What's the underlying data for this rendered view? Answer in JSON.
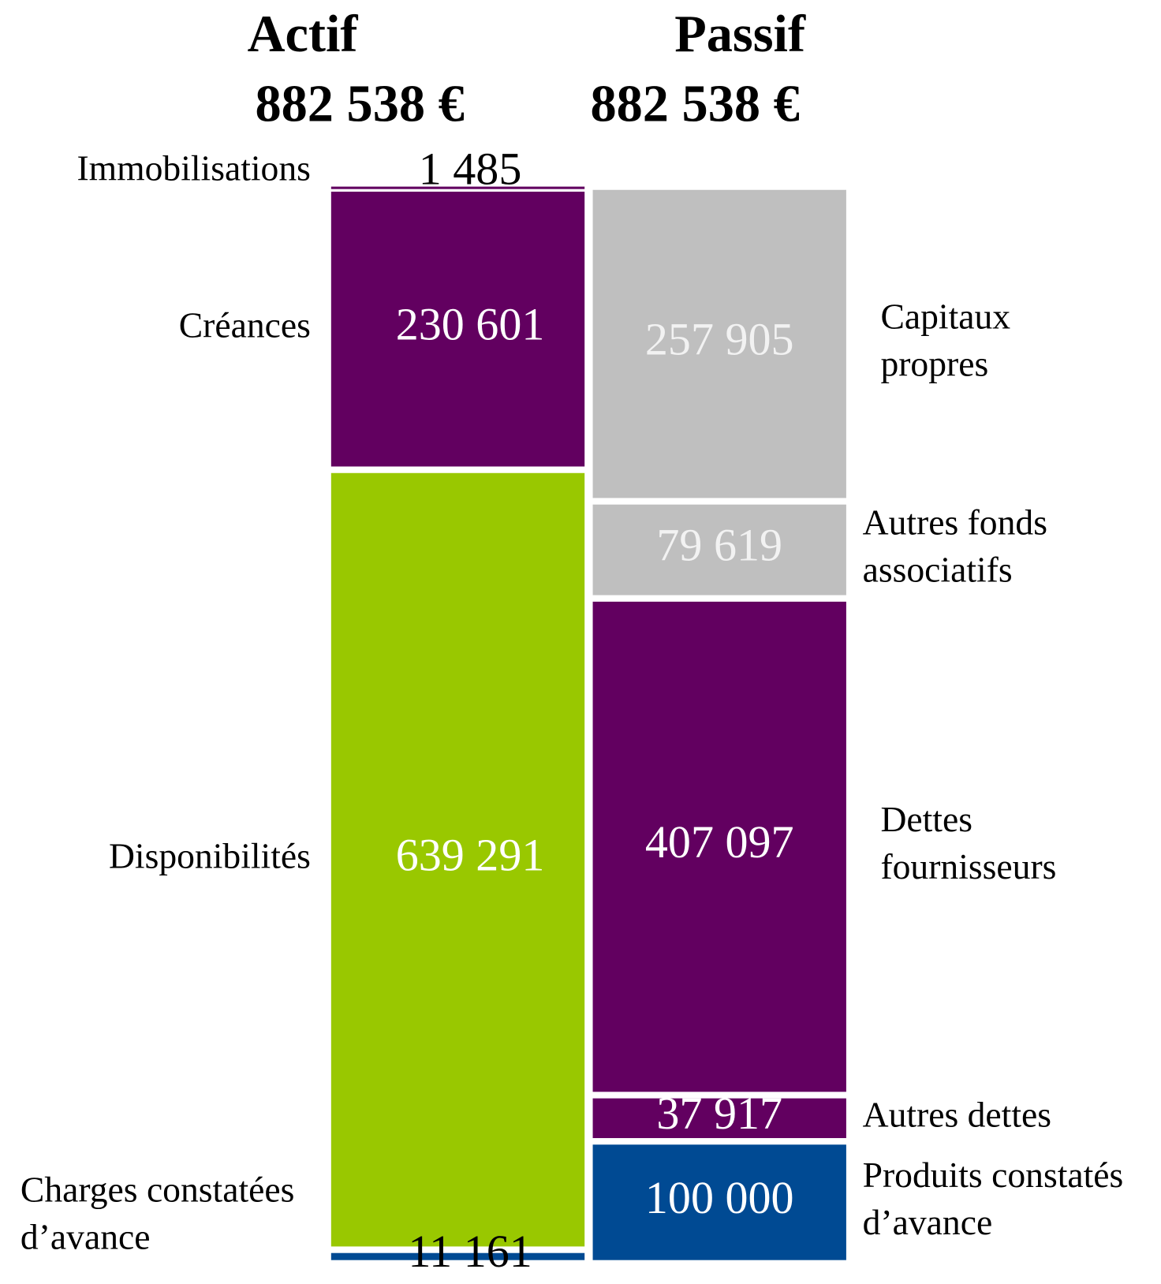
{
  "chart_data": {
    "type": "stacked_column",
    "columns": [
      {
        "name": "Actif",
        "total_label": "882 538 €",
        "label_side": "left",
        "segments": [
          {
            "label_lines": [
              "Immobilisations"
            ],
            "value": 1485,
            "value_label": "1 485",
            "color": "#620060",
            "label_color": "#000000"
          },
          {
            "label_lines": [
              "Créances"
            ],
            "value": 230601,
            "value_label": "230 601",
            "color": "#620060",
            "label_color": "#ffffff"
          },
          {
            "label_lines": [
              "Disponibilités"
            ],
            "value": 639291,
            "value_label": "639 291",
            "color": "#99c800",
            "label_color": "#ffffff"
          },
          {
            "label_lines": [
              "Charges constatées",
              "d’avance"
            ],
            "value": 11161,
            "value_label": "11 161",
            "color": "#004a93",
            "label_color": "#000000"
          }
        ]
      },
      {
        "name": "Passif",
        "total_label": "882 538 €",
        "label_side": "right",
        "segments": [
          {
            "label_lines": [
              "Capitaux",
              "propres"
            ],
            "value": 257905,
            "value_label": "257 905",
            "color": "#bfbfbf",
            "label_color": "#f2f2f2"
          },
          {
            "label_lines": [
              "Autres fonds",
              "associatifs"
            ],
            "value": 79619,
            "value_label": "79 619",
            "color": "#bfbfbf",
            "label_color": "#f2f2f2"
          },
          {
            "label_lines": [
              "Dettes",
              "fournisseurs"
            ],
            "value": 407097,
            "value_label": "407 097",
            "color": "#620060",
            "label_color": "#ffffff"
          },
          {
            "label_lines": [
              "Autres dettes"
            ],
            "value": 37917,
            "value_label": "37 917",
            "color": "#620060",
            "label_color": "#ffffff"
          },
          {
            "label_lines": [
              "Produits constatés",
              "d’avance"
            ],
            "value": 100000,
            "value_label": "100 000",
            "color": "#004a93",
            "label_color": "#ffffff"
          }
        ]
      }
    ]
  }
}
